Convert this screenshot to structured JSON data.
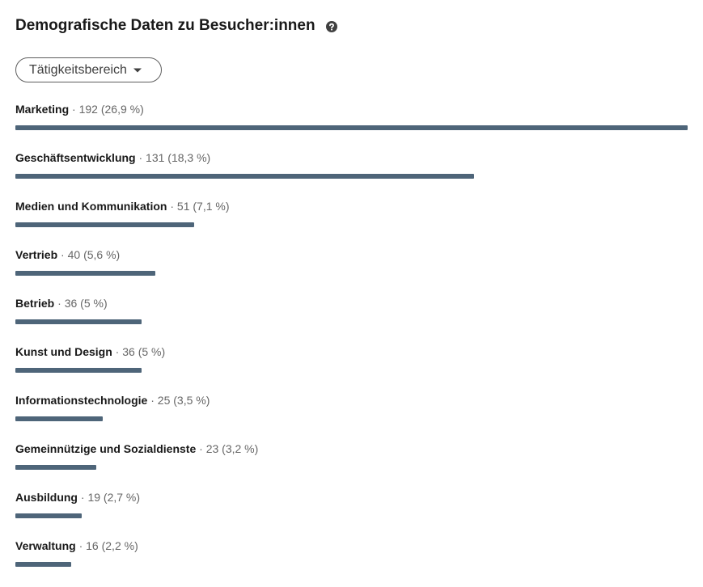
{
  "chart_data": {
    "type": "bar",
    "orientation": "horizontal",
    "title": "Demografische Daten zu Besucher:innen",
    "dropdown": "Tätigkeitsbereich",
    "separator": "·",
    "color": "#4e6579",
    "categories": [
      "Marketing",
      "Geschäftsentwicklung",
      "Medien und Kommunikation",
      "Vertrieb",
      "Betrieb",
      "Kunst und Design",
      "Informationstechnologie",
      "Gemeinnützige und Sozialdienste",
      "Ausbildung",
      "Verwaltung"
    ],
    "values": [
      192,
      131,
      51,
      40,
      36,
      36,
      25,
      23,
      19,
      16
    ],
    "percentages": [
      26.9,
      18.3,
      7.1,
      5.6,
      5,
      5,
      3.5,
      3.2,
      2.7,
      2.2
    ],
    "percentage_labels": [
      "(26,9 %)",
      "(18,3 %)",
      "(7,1 %)",
      "(5,6 %)",
      "(5 %)",
      "(5 %)",
      "(3,5 %)",
      "(3,2 %)",
      "(2,7 %)",
      "(2,2 %)"
    ]
  }
}
